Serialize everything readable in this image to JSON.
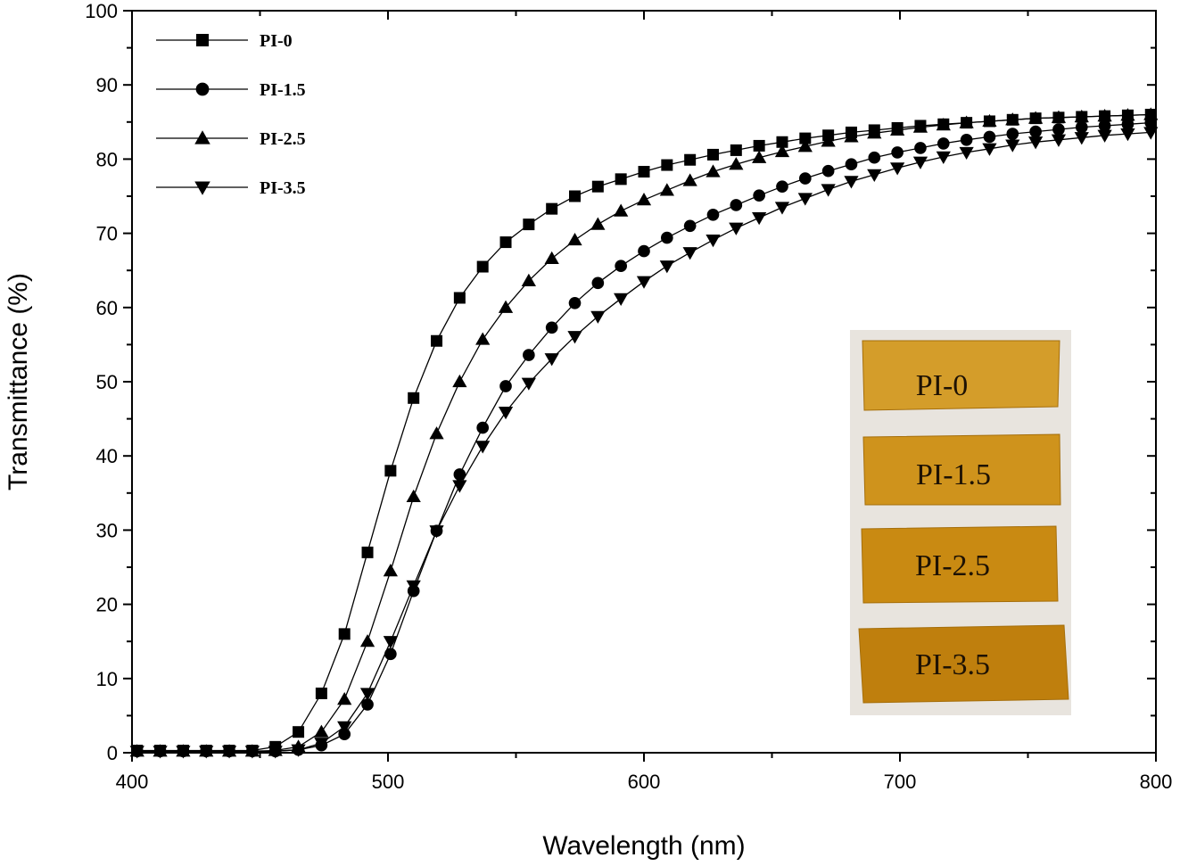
{
  "chart_data": {
    "type": "line",
    "xlabel": "Wavelength (nm)",
    "ylabel": "Transmittance (%)",
    "xlim": [
      400,
      800
    ],
    "ylim": [
      0,
      100
    ],
    "x_ticks": [
      400,
      500,
      600,
      700,
      800
    ],
    "y_ticks": [
      0,
      10,
      20,
      30,
      40,
      50,
      60,
      70,
      80,
      90,
      100
    ],
    "legend_position": "top-left",
    "grid": false,
    "x": [
      402,
      411,
      420,
      429,
      438,
      447,
      456,
      465,
      474,
      483,
      492,
      501,
      510,
      519,
      528,
      537,
      546,
      555,
      564,
      573,
      582,
      591,
      600,
      609,
      618,
      627,
      636,
      645,
      654,
      663,
      672,
      681,
      690,
      699,
      708,
      717,
      726,
      735,
      744,
      753,
      762,
      771,
      780,
      789,
      798
    ],
    "series": [
      {
        "name": "PI-0",
        "marker": "square",
        "values": [
          0.3,
          0.3,
          0.3,
          0.3,
          0.3,
          0.3,
          0.8,
          2.8,
          8,
          16,
          27,
          38,
          47.8,
          55.5,
          61.3,
          65.5,
          68.8,
          71.2,
          73.3,
          75,
          76.3,
          77.3,
          78.3,
          79.2,
          79.9,
          80.6,
          81.2,
          81.8,
          82.3,
          82.8,
          83.2,
          83.6,
          83.9,
          84.2,
          84.5,
          84.7,
          84.9,
          85.1,
          85.3,
          85.5,
          85.6,
          85.7,
          85.8,
          85.9,
          86
        ]
      },
      {
        "name": "PI-1.5",
        "marker": "circle",
        "values": [
          0.2,
          0.2,
          0.2,
          0.2,
          0.2,
          0.2,
          0.2,
          0.4,
          1,
          2.5,
          6.5,
          13.3,
          21.8,
          29.9,
          37.5,
          43.8,
          49.4,
          53.6,
          57.3,
          60.6,
          63.3,
          65.6,
          67.6,
          69.4,
          71,
          72.5,
          73.8,
          75.1,
          76.3,
          77.4,
          78.4,
          79.3,
          80.2,
          80.9,
          81.5,
          82.1,
          82.6,
          83,
          83.4,
          83.7,
          84,
          84.3,
          84.5,
          84.7,
          84.9
        ]
      },
      {
        "name": "PI-2.5",
        "marker": "triangle-up",
        "values": [
          0.2,
          0.2,
          0.2,
          0.2,
          0.2,
          0.2,
          0.3,
          0.8,
          2.8,
          7.2,
          15,
          24.5,
          34.5,
          43,
          50,
          55.7,
          60,
          63.6,
          66.6,
          69.1,
          71.2,
          73,
          74.5,
          75.8,
          77.1,
          78.3,
          79.3,
          80.2,
          81,
          81.7,
          82.4,
          83,
          83.5,
          83.9,
          84.3,
          84.6,
          84.9,
          85.1,
          85.3,
          85.5,
          85.6,
          85.7,
          85.8,
          85.9,
          86
        ]
      },
      {
        "name": "PI-3.5",
        "marker": "triangle-down",
        "values": [
          0.2,
          0.2,
          0.2,
          0.2,
          0.2,
          0.2,
          0.2,
          0.4,
          1.3,
          3.5,
          8,
          15,
          22.5,
          29.9,
          36,
          41.3,
          45.9,
          49.8,
          53.1,
          56.1,
          58.8,
          61.2,
          63.5,
          65.6,
          67.4,
          69.1,
          70.7,
          72.1,
          73.5,
          74.7,
          75.9,
          77,
          77.9,
          78.8,
          79.6,
          80.3,
          80.9,
          81.4,
          81.9,
          82.3,
          82.6,
          82.9,
          83.2,
          83.4,
          83.6
        ]
      }
    ]
  },
  "inset": {
    "strips": [
      {
        "label": "PI-0",
        "color": "#d49d2a"
      },
      {
        "label": "PI-1.5",
        "color": "#cf931c"
      },
      {
        "label": "PI-2.5",
        "color": "#c98a12"
      },
      {
        "label": "PI-3.5",
        "color": "#bf7f0d"
      }
    ],
    "background": "#e8e4de"
  }
}
